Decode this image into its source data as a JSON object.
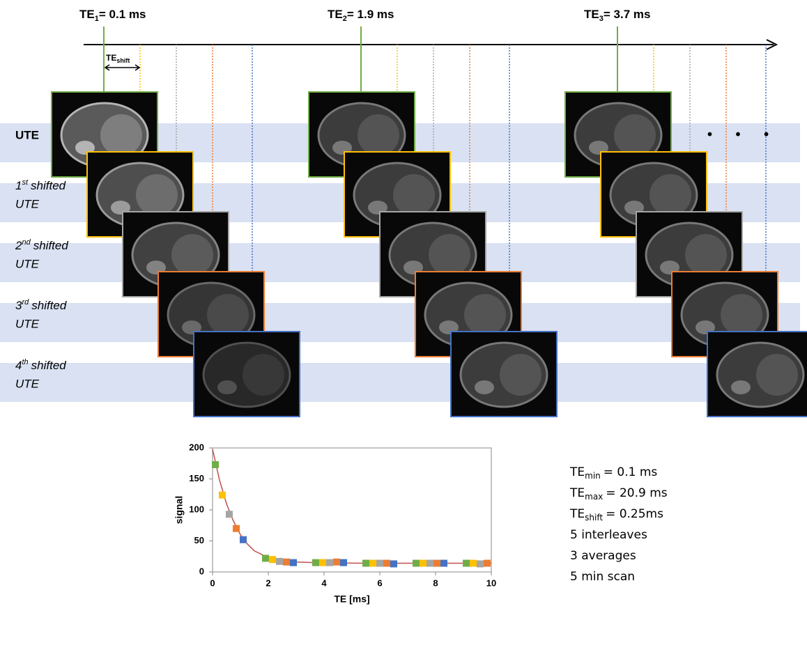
{
  "header": {
    "te": [
      {
        "base": "TE",
        "sub": "1",
        "rest": "= 0.1 ms"
      },
      {
        "base": "TE",
        "sub": "2",
        "rest": "= 1.9 ms"
      },
      {
        "base": "TE",
        "sub": "3",
        "rest": "= 3.7 ms"
      }
    ],
    "shift": {
      "base": "TE",
      "sub": "shift"
    },
    "ellipsis": "• • •"
  },
  "rows": [
    {
      "label": "UTE"
    },
    {
      "num": "1",
      "sup": "st",
      "rest": "shifted",
      "line2": "UTE"
    },
    {
      "num": "2",
      "sup": "nd",
      "rest": "shifted",
      "line2": "UTE"
    },
    {
      "num": "3",
      "sup": "rd",
      "rest": "shifted",
      "line2": "UTE"
    },
    {
      "num": "4",
      "sup": "th",
      "rest": "shifted",
      "line2": "UTE"
    }
  ],
  "chart": {
    "type": "scatter",
    "xlabel": "TE [ms]",
    "ylabel": "signal",
    "xlim": [
      0,
      10
    ],
    "ylim": [
      0,
      200
    ],
    "xticks": [
      0,
      2,
      4,
      6,
      8,
      10
    ],
    "yticks": [
      0,
      50,
      100,
      150,
      200
    ],
    "series": [
      {
        "color": "#70ad47",
        "x": [
          0.1,
          1.9,
          3.7,
          5.5,
          7.3,
          9.1
        ],
        "values": [
          173,
          22,
          15,
          14,
          14,
          14
        ]
      },
      {
        "color": "#ffc000",
        "x": [
          0.35,
          2.15,
          3.95,
          5.75,
          7.55,
          9.35
        ],
        "values": [
          124,
          20,
          15,
          14,
          14,
          14
        ]
      },
      {
        "color": "#a5a5a5",
        "x": [
          0.6,
          2.4,
          4.2,
          6.0,
          7.8,
          9.6
        ],
        "values": [
          93,
          17,
          15,
          14,
          14,
          13
        ]
      },
      {
        "color": "#ed7d31",
        "x": [
          0.85,
          2.65,
          4.45,
          6.25,
          8.05,
          9.85
        ],
        "values": [
          70,
          16,
          16,
          14,
          14,
          14
        ]
      },
      {
        "color": "#4472c4",
        "x": [
          1.1,
          2.9,
          4.7,
          6.5,
          8.3
        ],
        "values": [
          52,
          15,
          15,
          13,
          14
        ]
      }
    ],
    "fit": {
      "color": "#c0504d",
      "x": [
        0,
        0.25,
        0.5,
        0.75,
        1,
        1.25,
        1.5,
        2,
        2.5,
        3,
        4,
        6,
        10
      ],
      "y": [
        198,
        148,
        110,
        82,
        60,
        45,
        34,
        23,
        18,
        16,
        14.5,
        14,
        14
      ]
    }
  },
  "params": [
    {
      "base": "TE",
      "sub": "min",
      "rest": "= 0.1 ms"
    },
    {
      "base": "TE",
      "sub": "max",
      "rest": "= 20.9 ms"
    },
    {
      "base": "TE",
      "sub": "shift",
      "rest": "= 0.25ms"
    },
    {
      "text": "5 interleaves"
    },
    {
      "text": "3 averages"
    },
    {
      "text": "5 min scan"
    }
  ]
}
